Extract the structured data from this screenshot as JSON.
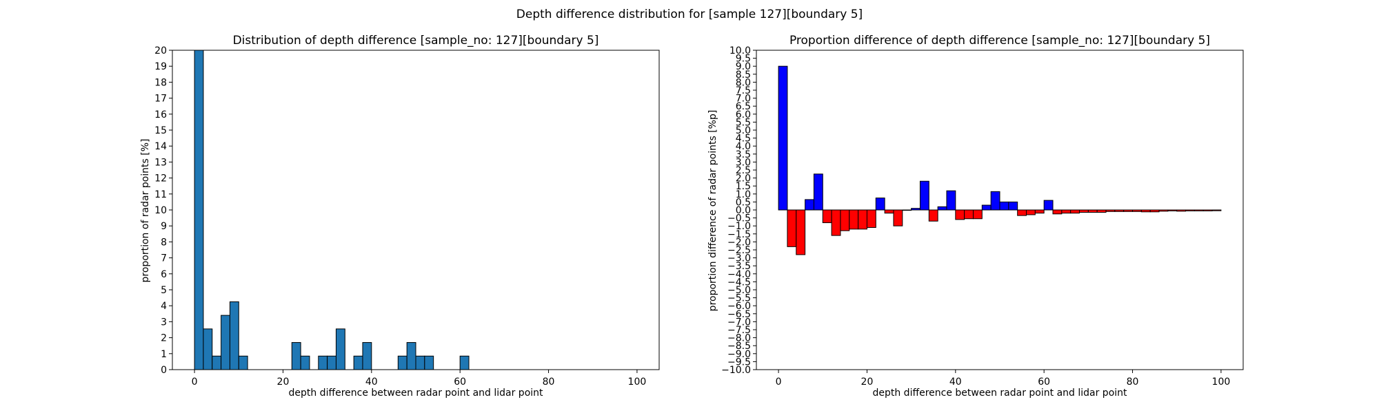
{
  "figure": {
    "suptitle": "Depth difference distribution for [sample 127][boundary 5]"
  },
  "chart_data": [
    {
      "type": "bar",
      "title": "Distribution of depth difference [sample_no: 127][boundary 5]",
      "xlabel": "depth difference between radar point and lidar point",
      "ylabel": "proportion of radar points [%]",
      "xlim": [
        -5,
        105
      ],
      "ylim": [
        0,
        20
      ],
      "xticks": [
        0,
        20,
        40,
        60,
        80,
        100
      ],
      "yticks": [
        0,
        1,
        2,
        3,
        4,
        5,
        6,
        7,
        8,
        9,
        10,
        11,
        12,
        13,
        14,
        15,
        16,
        17,
        18,
        19,
        20
      ],
      "bin_width": 2,
      "bar_color": "#1f77b4",
      "edge_color": "#000000",
      "x": [
        0,
        2,
        4,
        6,
        8,
        10,
        22,
        24,
        28,
        30,
        32,
        36,
        38,
        46,
        48,
        50,
        52,
        60
      ],
      "values": [
        20.0,
        2.55,
        0.85,
        3.4,
        4.25,
        0.85,
        1.7,
        0.85,
        0.85,
        0.85,
        2.55,
        0.85,
        1.7,
        0.85,
        1.7,
        0.85,
        0.85,
        0.85
      ]
    },
    {
      "type": "bar",
      "title": "Proportion difference of depth difference [sample_no: 127][boundary 5]",
      "xlabel": "depth difference between radar point and lidar point",
      "ylabel": "proportion difference of radar points [%p]",
      "xlim": [
        -5,
        105
      ],
      "ylim": [
        -10,
        10
      ],
      "xticks": [
        0,
        20,
        40,
        60,
        80,
        100
      ],
      "yticks": [
        -10.0,
        -9.5,
        -9.0,
        -8.5,
        -8.0,
        -7.5,
        -7.0,
        -6.5,
        -6.0,
        -5.5,
        -5.0,
        -4.5,
        -4.0,
        -3.5,
        -3.0,
        -2.5,
        -2.0,
        -1.5,
        -1.0,
        -0.5,
        0.0,
        0.5,
        1.0,
        1.5,
        2.0,
        2.5,
        3.0,
        3.5,
        4.0,
        4.5,
        5.0,
        5.5,
        6.0,
        6.5,
        7.0,
        7.5,
        8.0,
        8.5,
        9.0,
        9.5,
        10.0
      ],
      "bin_width": 2,
      "positive_color": "#0000ff",
      "negative_color": "#ff0000",
      "edge_color": "#000000",
      "x": [
        0,
        2,
        4,
        6,
        8,
        10,
        12,
        14,
        16,
        18,
        20,
        22,
        24,
        26,
        28,
        30,
        32,
        34,
        36,
        38,
        40,
        42,
        44,
        46,
        48,
        50,
        52,
        54,
        56,
        58,
        60,
        62,
        64,
        66,
        68,
        70,
        72,
        74,
        76,
        78,
        80,
        82,
        84,
        86,
        88,
        90,
        92,
        94,
        96,
        98
      ],
      "values": [
        9.0,
        -2.3,
        -2.8,
        0.65,
        2.25,
        -0.8,
        -1.6,
        -1.3,
        -1.2,
        -1.2,
        -1.1,
        0.75,
        -0.2,
        -1.0,
        0.0,
        0.1,
        1.8,
        -0.7,
        0.2,
        1.2,
        -0.6,
        -0.55,
        -0.55,
        0.3,
        1.15,
        0.5,
        0.5,
        -0.35,
        -0.3,
        -0.2,
        0.6,
        -0.25,
        -0.2,
        -0.2,
        -0.15,
        -0.15,
        -0.15,
        -0.1,
        -0.1,
        -0.1,
        -0.1,
        -0.12,
        -0.12,
        -0.08,
        -0.06,
        -0.08,
        -0.06,
        -0.06,
        -0.06,
        -0.05
      ]
    }
  ]
}
